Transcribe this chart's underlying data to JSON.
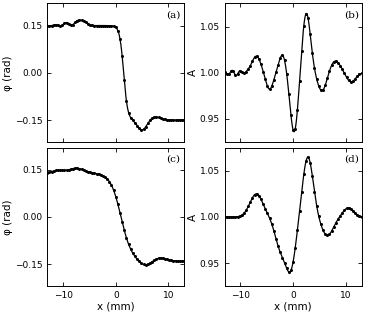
{
  "xlim": [
    -13,
    13
  ],
  "ylim_phase": [
    -0.22,
    0.22
  ],
  "ylim_amp": [
    0.925,
    1.075
  ],
  "xlabel": "x (mm)",
  "ylabel_phase": "φ (rad)",
  "ylabel_amp": "A",
  "yticks_phase": [
    -0.15,
    0,
    0.15
  ],
  "yticks_amp": [
    0.95,
    1.0,
    1.05
  ],
  "xticks": [
    -10,
    0,
    10
  ],
  "panel_labels": [
    "(a)",
    "(b)",
    "(c)",
    "(d)"
  ],
  "background_color": "#ffffff",
  "line_color": "#000000",
  "linewidth": 0.9,
  "dot_marker": ".",
  "dot_size": 2.2
}
